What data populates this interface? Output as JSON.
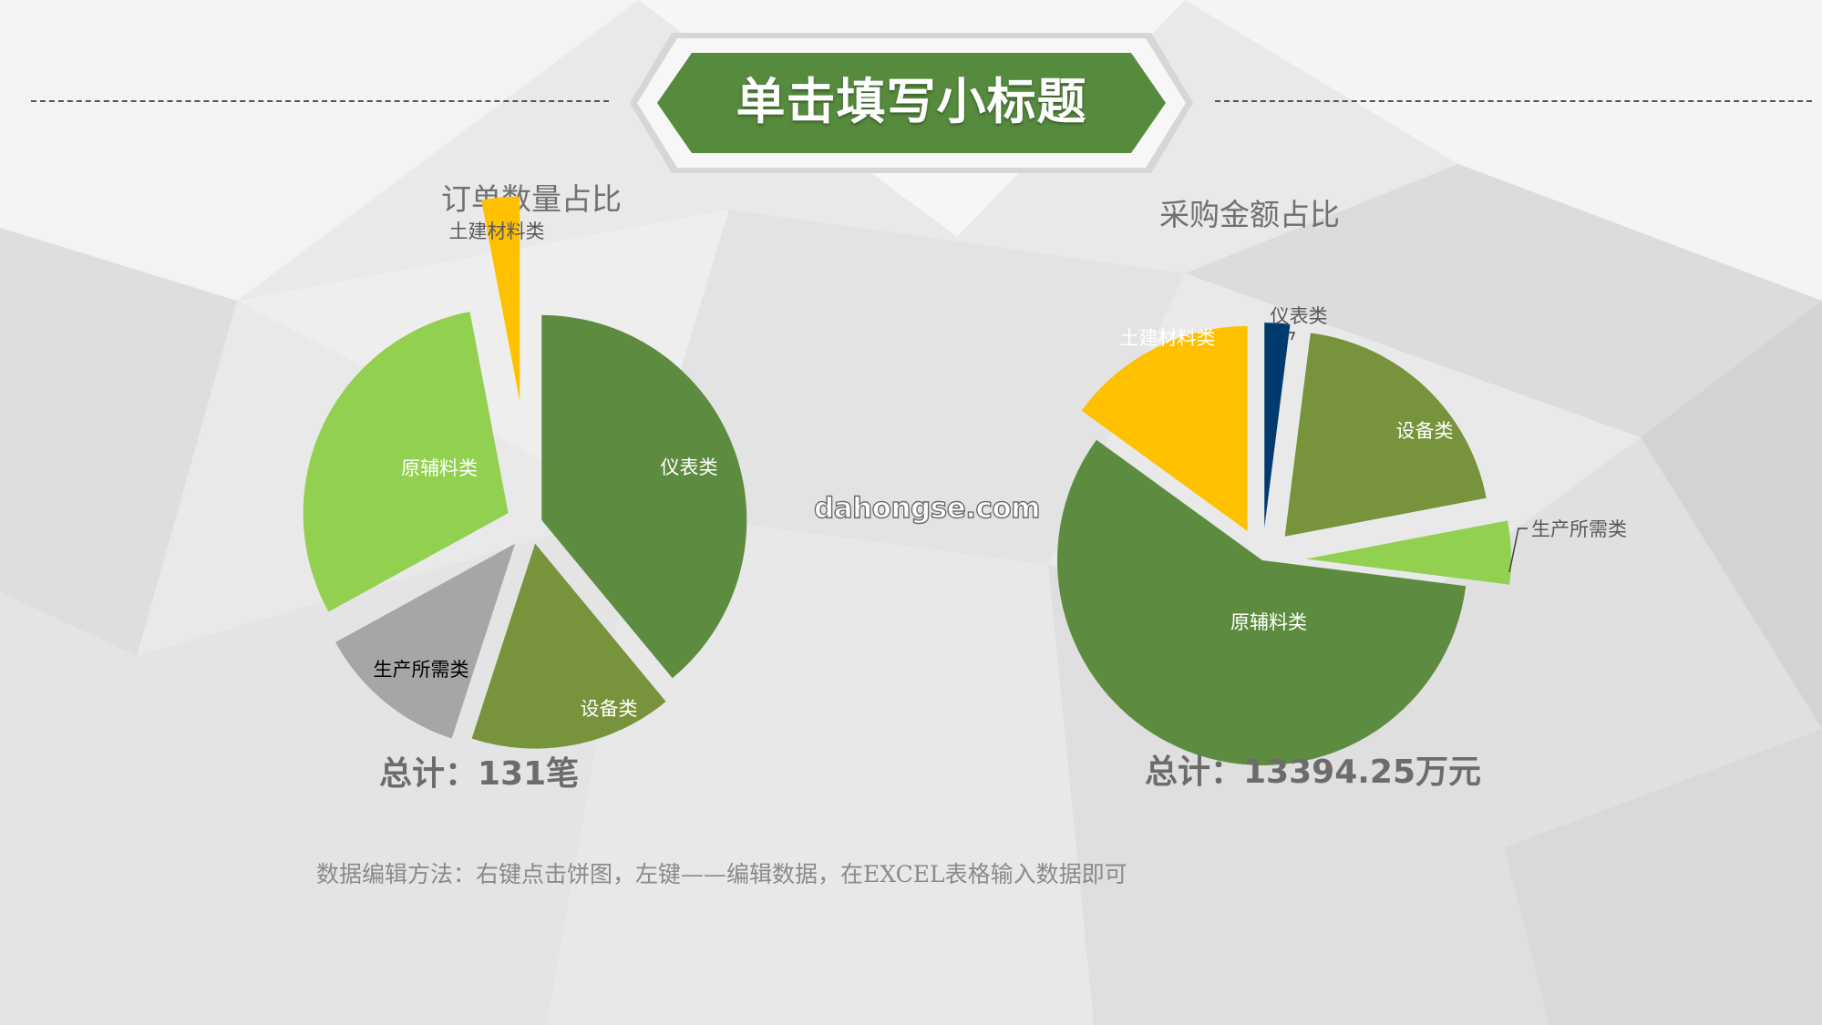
{
  "banner": {
    "title": "单击填写小标题"
  },
  "chart_data": [
    {
      "type": "pie",
      "title": "订单数量占比",
      "categories": [
        "仪表类",
        "设备类",
        "生产所需类",
        "原辅料类",
        "土建材料类"
      ],
      "values": [
        39,
        16,
        12,
        30,
        3
      ],
      "unit": "%",
      "colors": [
        "#5d8c40",
        "#77933c",
        "#a6a6a6",
        "#92d050",
        "#ffc000"
      ],
      "label_colors": [
        "#ffffff",
        "#ffffff",
        "#000000",
        "#ffffff",
        "#595959"
      ],
      "total": "总计：131笔"
    },
    {
      "type": "pie",
      "title": "采购金额占比",
      "categories": [
        "仪表类",
        "设备类",
        "生产所需类",
        "原辅料类",
        "土建材料类"
      ],
      "values": [
        2,
        20,
        5,
        58,
        15
      ],
      "unit": "%",
      "colors": [
        "#003b6f",
        "#77933c",
        "#92d050",
        "#5d8c40",
        "#ffc000"
      ],
      "label_colors": [
        "#595959",
        "#ffffff",
        "#595959",
        "#ffffff",
        "#ffffff"
      ],
      "total": "总计：13394.25万元"
    }
  ],
  "watermark": "dahongse.com",
  "note": "数据编辑方法：右键点击饼图，左键——编辑数据，在EXCEL表格输入数据即可"
}
